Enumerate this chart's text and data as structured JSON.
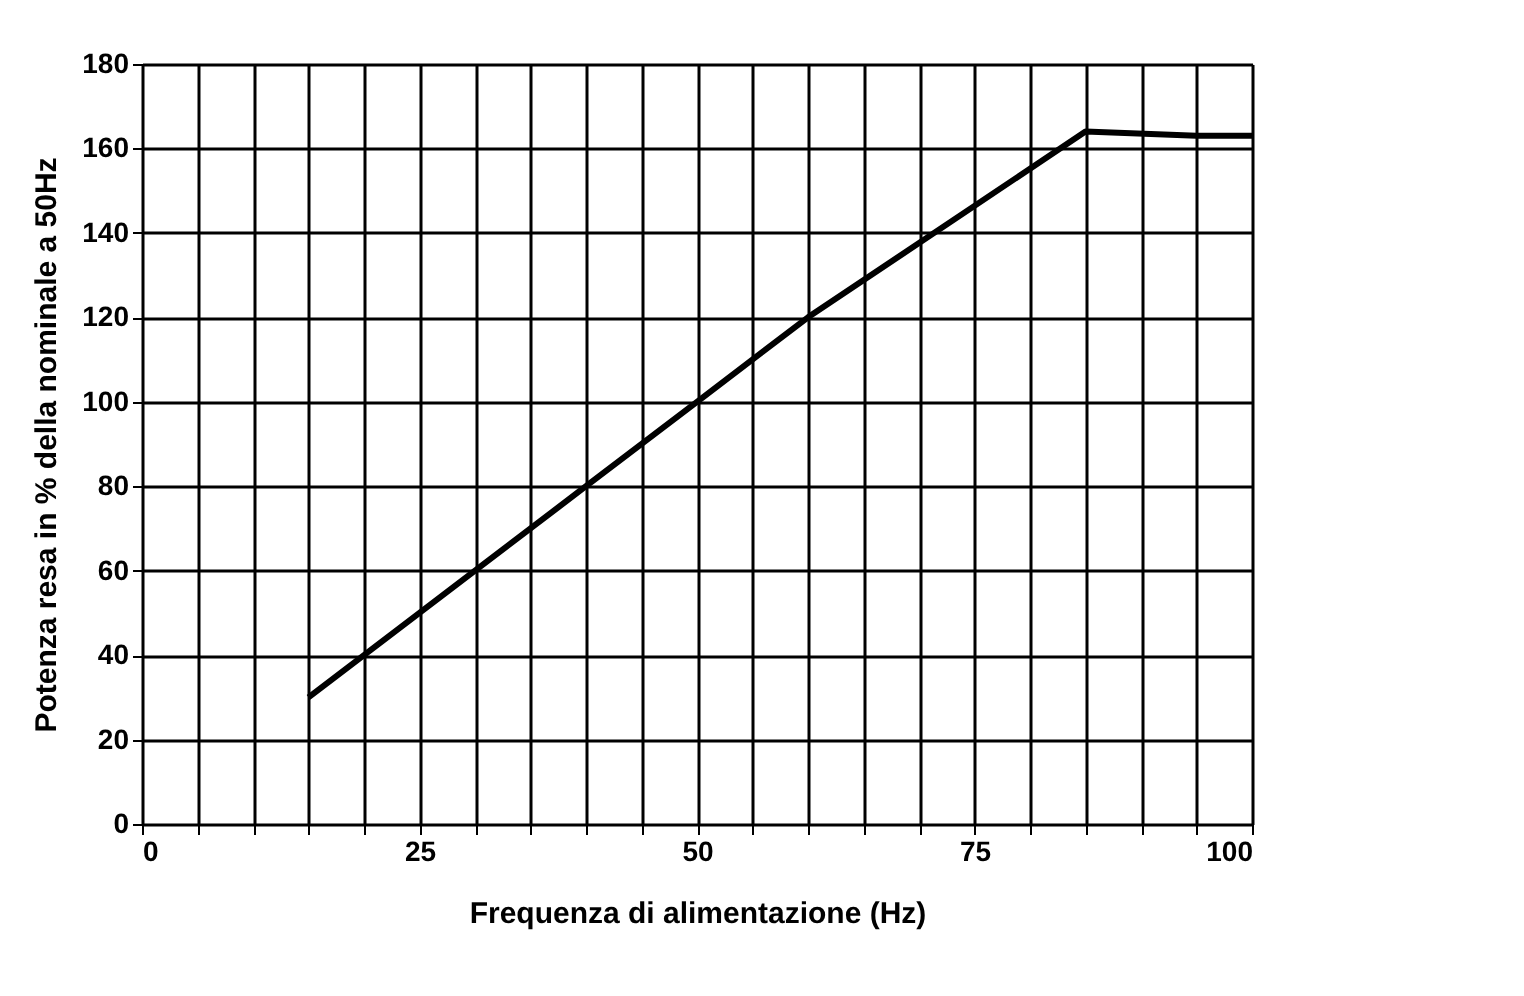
{
  "chart_data": {
    "type": "line",
    "xlabel": "Frequenza di alimentazione (Hz)",
    "ylabel": "Potenza resa in % della nominale a 50Hz",
    "x": [
      15,
      20,
      30,
      40,
      50,
      60,
      85,
      95,
      100
    ],
    "series": [
      {
        "color": "#000000",
        "values": [
          30,
          40,
          60,
          80,
          100,
          120,
          164,
          163,
          163
        ]
      }
    ],
    "xlim": [
      0,
      100
    ],
    "xticks": [
      0,
      {
        "value": 5,
        "label": null
      },
      {
        "value": 10,
        "label": null
      },
      {
        "value": 15,
        "label": null
      },
      {
        "value": 20,
        "label": null
      },
      25,
      {
        "value": 30,
        "label": null
      },
      {
        "value": 35,
        "label": null
      },
      {
        "value": 40,
        "label": null
      },
      {
        "value": 45,
        "label": null
      },
      50,
      {
        "value": 55,
        "label": null
      },
      {
        "value": 60,
        "label": null
      },
      {
        "value": 65,
        "label": null
      },
      {
        "value": 70,
        "label": null
      },
      75,
      {
        "value": 80,
        "label": null
      },
      {
        "value": 85,
        "label": null
      },
      {
        "value": 90,
        "label": null
      },
      {
        "value": 95,
        "label": null
      },
      100
    ],
    "ylim": [
      0,
      180
    ],
    "yticks": [
      0,
      20,
      40,
      60,
      80,
      100,
      120,
      140,
      160,
      180
    ],
    "grid": true,
    "legend": false,
    "marker": "none",
    "line_style": "solid"
  }
}
